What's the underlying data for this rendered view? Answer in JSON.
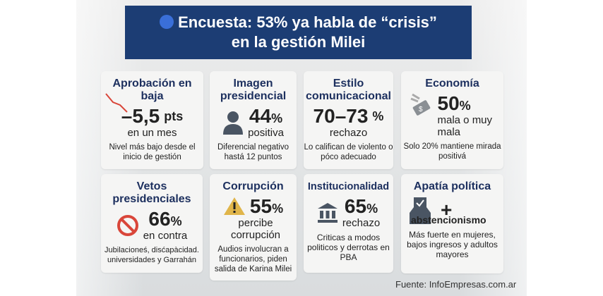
{
  "header": {
    "title_line1": "Encuesta: 53% ya habla de “crisis”",
    "title_line2": "en la gestión Milei",
    "accent": "#1c3d74",
    "dot_color": "#3a6fd8"
  },
  "cards": [
    {
      "title": "Aprobación en baja",
      "value": "–5,5",
      "unit": "pts",
      "sub": "en un mes",
      "note": "Nivel más bajo desde el inicio de gestión",
      "icon": "trend-down-icon"
    },
    {
      "title": "Imagen presidencial",
      "value": "44",
      "unit": "%",
      "sub": "positiva",
      "note": "Diferencial negativo hastá 12 puntos",
      "icon": "person-icon"
    },
    {
      "title": "Estilo comunicacional",
      "value": "70–73",
      "unit": "%",
      "sub": "rechazo",
      "note": "Lo califican de violento o póco adecuado"
    },
    {
      "title": "Economía",
      "value": "50",
      "unit": "%",
      "sub": "mala o muy mala",
      "note": "Solo 20% mantiene mirada positivá",
      "icon": "money-icon"
    },
    {
      "title": "Vetos presidenciales",
      "value": "66",
      "unit": "%",
      "sub": "en contra",
      "note": "Jubilacioneś, disćapàcidad. universidades y Garrahán",
      "icon": "prohibited-icon"
    },
    {
      "title": "Corrupción",
      "value": "55",
      "unit": "%",
      "sub": "percibe corrupción",
      "note": "Audios involucran a funcionarios, piden salida de Karina Milei",
      "icon": "warning-icon"
    },
    {
      "title": "Institucionalidad",
      "value": "65",
      "unit": "%",
      "sub": "rechazo",
      "note": "Criticas a modos politicos y derrotas en PBA",
      "icon": "institution-icon"
    },
    {
      "title": "Apatía política",
      "value": "+",
      "sub": "abstencionismo",
      "note": "Más fuerte en mujeres, bajos ingresos y adultos mayores",
      "icon": "ballot-box-icon"
    }
  ],
  "source": "Fuente: InfoEmpresas.com.ar"
}
